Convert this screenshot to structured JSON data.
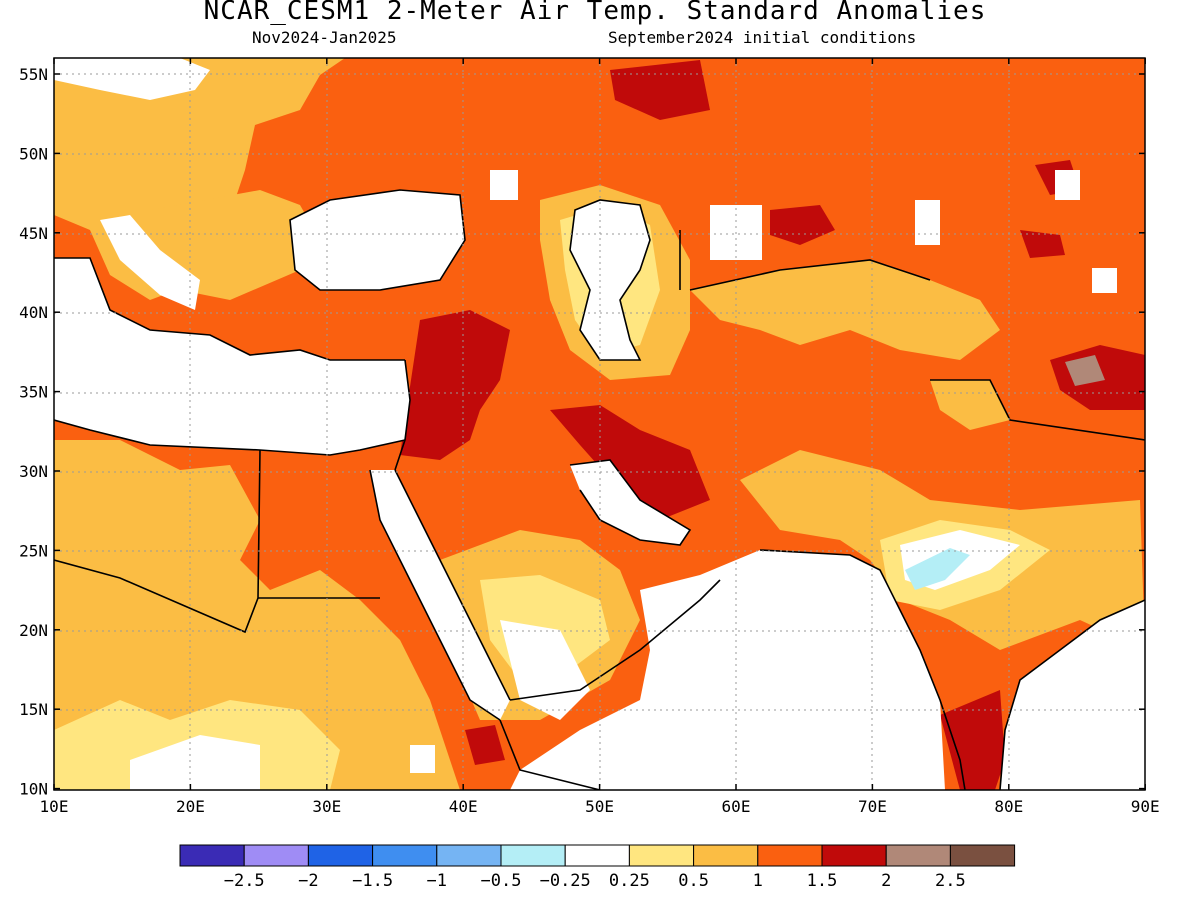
{
  "title": "NCAR_CESM1 2-Meter Air Temp. Standard Anomalies",
  "subtitle_left": "Nov2024-Jan2025",
  "subtitle_right": "September2024 initial conditions",
  "lat_labels": [
    "55N",
    "50N",
    "45N",
    "40N",
    "35N",
    "30N",
    "25N",
    "20N",
    "15N",
    "10N"
  ],
  "lon_labels": [
    "10E",
    "20E",
    "30E",
    "40E",
    "50E",
    "60E",
    "70E",
    "80E",
    "90E"
  ],
  "colorbar": {
    "colors": [
      "#3a2bb5",
      "#9f8cf5",
      "#1f63e6",
      "#3f8ef0",
      "#75b4f3",
      "#b4eef6",
      "#ffffff",
      "#ffe680",
      "#fbbd44",
      "#fa6010",
      "#c00a0a",
      "#b08878",
      "#7a5040"
    ],
    "labels": [
      "−2.5",
      "−2",
      "−1.5",
      "−1",
      "−0.5",
      "−0.25",
      "0.25",
      "0.5",
      "1",
      "1.5",
      "2",
      "2.5"
    ]
  },
  "palette": {
    "orange": "#fa6010",
    "light_orange": "#fbbd44",
    "yellow": "#ffe680",
    "dark_red": "#c00a0a",
    "light_blue": "#b4eef6",
    "brown": "#b08878"
  }
}
